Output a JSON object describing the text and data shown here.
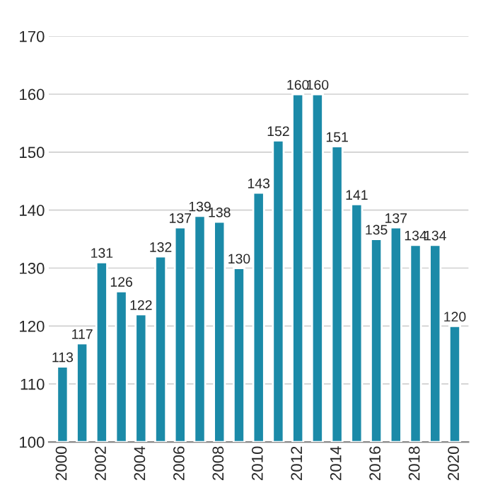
{
  "chart_data": {
    "type": "bar",
    "categories": [
      "2000",
      null,
      "2002",
      null,
      "2004",
      null,
      "2006",
      null,
      "2008",
      null,
      "2010",
      null,
      "2012",
      null,
      "2014",
      null,
      "2016",
      null,
      "2018",
      null,
      "2020"
    ],
    "values": [
      113,
      117,
      131,
      126,
      122,
      132,
      137,
      139,
      138,
      130,
      143,
      152,
      160,
      160,
      151,
      141,
      135,
      137,
      134,
      134,
      120
    ],
    "color": "#1b8aa8",
    "ylim": [
      100,
      170
    ],
    "yticks": [
      100,
      110,
      120,
      130,
      140,
      150,
      160,
      170
    ],
    "grid": "y",
    "data_labels": true
  }
}
